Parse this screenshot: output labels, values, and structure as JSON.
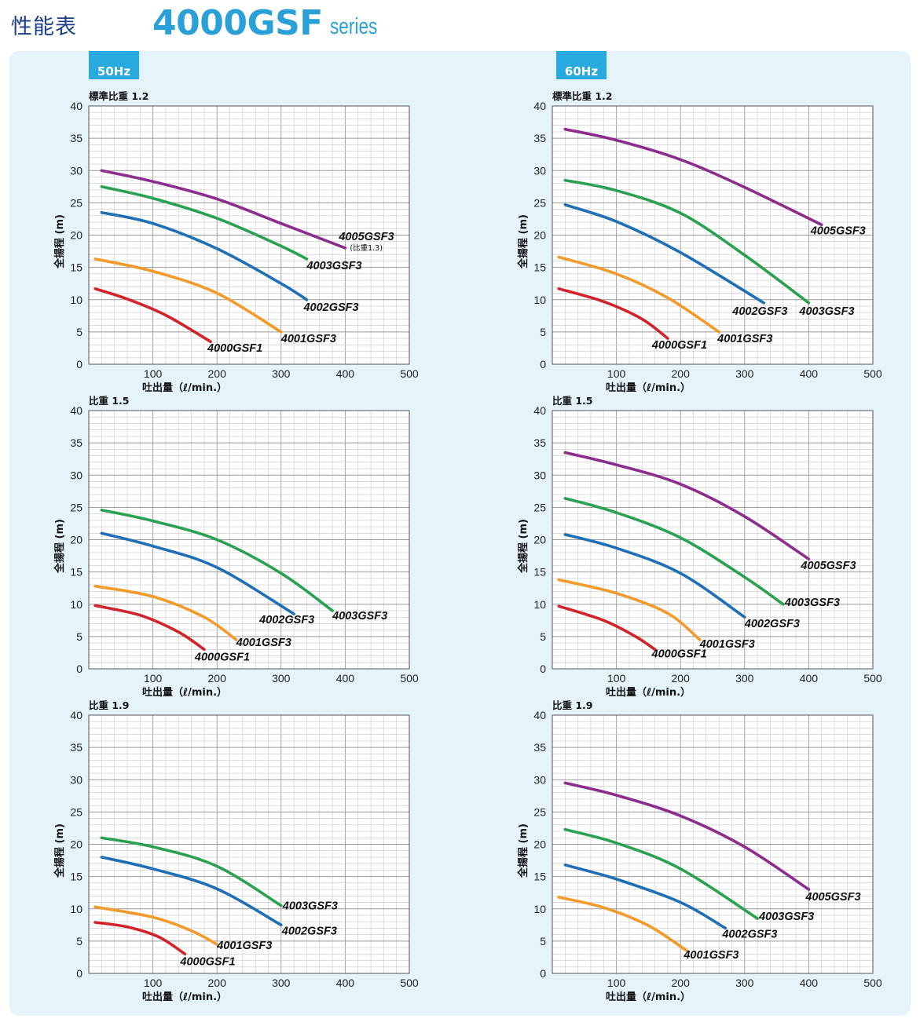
{
  "header": {
    "title": "性能表",
    "model": "4000GSF",
    "series": "series"
  },
  "columns": [
    {
      "freq": "50Hz"
    },
    {
      "freq": "60Hz"
    }
  ],
  "colors": {
    "4000GSF1": "#d2232a",
    "4001GSF3": "#f39a2b",
    "4002GSF3": "#1f6fb7",
    "4003GSF3": "#2aa150",
    "4005GSF3": "#8c2d8e"
  },
  "chart_data": [
    {
      "type": "line",
      "freq": "50Hz",
      "subtitle": "標準比重 1.2",
      "xlabel": "吐出量（ℓ/min.）",
      "ylabel": "全揚程 (m)",
      "xlim": [
        0,
        500
      ],
      "ylim": [
        0,
        40
      ],
      "xticks": [
        100,
        200,
        300,
        400,
        500
      ],
      "yticks": [
        0,
        5,
        10,
        15,
        20,
        25,
        30,
        35,
        40
      ],
      "grid": true,
      "series": [
        {
          "name": "4005GSF3",
          "note": "(比重1.3)",
          "color": "#8c2d8e",
          "x": [
            20,
            100,
            200,
            300,
            400
          ],
          "y": [
            30,
            28.3,
            25.6,
            21.8,
            18
          ]
        },
        {
          "name": "4003GSF3",
          "color": "#2aa150",
          "x": [
            20,
            100,
            200,
            300,
            340
          ],
          "y": [
            27.5,
            25.7,
            22.6,
            18.3,
            16.3
          ]
        },
        {
          "name": "4002GSF3",
          "color": "#1f6fb7",
          "x": [
            20,
            100,
            200,
            300,
            340
          ],
          "y": [
            23.5,
            21.8,
            17.9,
            12.5,
            10
          ]
        },
        {
          "name": "4001GSF3",
          "color": "#f39a2b",
          "x": [
            10,
            100,
            200,
            300
          ],
          "y": [
            16.3,
            14.4,
            11,
            5
          ]
        },
        {
          "name": "4000GSF1",
          "color": "#d2232a",
          "x": [
            10,
            60,
            120,
            190
          ],
          "y": [
            11.7,
            10.1,
            7.6,
            3.5
          ]
        }
      ]
    },
    {
      "type": "line",
      "freq": "60Hz",
      "subtitle": "標準比重 1.2",
      "xlabel": "吐出量（ℓ/min.）",
      "ylabel": "全揚程 (m)",
      "xlim": [
        0,
        500
      ],
      "ylim": [
        0,
        40
      ],
      "xticks": [
        100,
        200,
        300,
        400,
        500
      ],
      "yticks": [
        0,
        5,
        10,
        15,
        20,
        25,
        30,
        35,
        40
      ],
      "grid": true,
      "series": [
        {
          "name": "4005GSF3",
          "color": "#8c2d8e",
          "x": [
            20,
            100,
            200,
            300,
            420
          ],
          "y": [
            36.4,
            34.7,
            31.7,
            27.4,
            21.6
          ]
        },
        {
          "name": "4003GSF3",
          "color": "#2aa150",
          "x": [
            20,
            100,
            200,
            300,
            400
          ],
          "y": [
            28.5,
            26.9,
            23.4,
            16.9,
            9.5
          ]
        },
        {
          "name": "4002GSF3",
          "color": "#1f6fb7",
          "x": [
            20,
            100,
            200,
            330
          ],
          "y": [
            24.7,
            22.1,
            17.3,
            9.5
          ]
        },
        {
          "name": "4001GSF3",
          "color": "#f39a2b",
          "x": [
            10,
            100,
            180,
            260
          ],
          "y": [
            16.6,
            14,
            10.3,
            5
          ]
        },
        {
          "name": "4000GSF1",
          "color": "#d2232a",
          "x": [
            10,
            80,
            140,
            180
          ],
          "y": [
            11.7,
            9.7,
            7,
            4
          ]
        }
      ]
    },
    {
      "type": "line",
      "freq": "50Hz",
      "subtitle": "比重 1.5",
      "xlabel": "吐出量（ℓ/min.）",
      "ylabel": "全揚程 (m)",
      "xlim": [
        0,
        500
      ],
      "ylim": [
        0,
        40
      ],
      "xticks": [
        100,
        200,
        300,
        400,
        500
      ],
      "yticks": [
        0,
        5,
        10,
        15,
        20,
        25,
        30,
        35,
        40
      ],
      "grid": true,
      "series": [
        {
          "name": "4003GSF3",
          "color": "#2aa150",
          "x": [
            20,
            100,
            200,
            300,
            380
          ],
          "y": [
            24.6,
            22.9,
            20,
            14.8,
            9
          ]
        },
        {
          "name": "4002GSF3",
          "color": "#1f6fb7",
          "x": [
            20,
            100,
            200,
            320
          ],
          "y": [
            21,
            19,
            15.7,
            8.5
          ]
        },
        {
          "name": "4001GSF3",
          "color": "#f39a2b",
          "x": [
            10,
            100,
            180,
            230
          ],
          "y": [
            12.8,
            11.2,
            8,
            4.5
          ]
        },
        {
          "name": "4000GSF1",
          "color": "#d2232a",
          "x": [
            10,
            80,
            140,
            180
          ],
          "y": [
            9.8,
            8.3,
            5.7,
            3
          ]
        }
      ]
    },
    {
      "type": "line",
      "freq": "60Hz",
      "subtitle": "比重 1.5",
      "xlabel": "吐出量（ℓ/min.）",
      "ylabel": "全揚程 (m)",
      "xlim": [
        0,
        500
      ],
      "ylim": [
        0,
        40
      ],
      "xticks": [
        100,
        200,
        300,
        400,
        500
      ],
      "yticks": [
        0,
        5,
        10,
        15,
        20,
        25,
        30,
        35,
        40
      ],
      "grid": true,
      "series": [
        {
          "name": "4005GSF3",
          "color": "#8c2d8e",
          "x": [
            20,
            100,
            200,
            300,
            400
          ],
          "y": [
            33.5,
            31.6,
            28.6,
            23.6,
            17
          ]
        },
        {
          "name": "4003GSF3",
          "color": "#2aa150",
          "x": [
            20,
            100,
            200,
            300,
            360
          ],
          "y": [
            26.4,
            24.2,
            20.3,
            14.2,
            10
          ]
        },
        {
          "name": "4002GSF3",
          "color": "#1f6fb7",
          "x": [
            20,
            100,
            200,
            300
          ],
          "y": [
            20.8,
            18.7,
            14.8,
            8
          ]
        },
        {
          "name": "4001GSF3",
          "color": "#f39a2b",
          "x": [
            10,
            100,
            180,
            230
          ],
          "y": [
            13.8,
            11.7,
            8.6,
            4.5
          ]
        },
        {
          "name": "4000GSF1",
          "color": "#d2232a",
          "x": [
            10,
            80,
            130,
            160
          ],
          "y": [
            9.7,
            7.5,
            5,
            3
          ]
        }
      ]
    },
    {
      "type": "line",
      "freq": "50Hz",
      "subtitle": "比重 1.9",
      "xlabel": "吐出量（ℓ/min.）",
      "ylabel": "全揚程 (m)",
      "xlim": [
        0,
        500
      ],
      "ylim": [
        0,
        40
      ],
      "xticks": [
        100,
        200,
        300,
        400,
        500
      ],
      "yticks": [
        0,
        5,
        10,
        15,
        20,
        25,
        30,
        35,
        40
      ],
      "grid": true,
      "series": [
        {
          "name": "4003GSF3",
          "color": "#2aa150",
          "x": [
            20,
            100,
            200,
            300
          ],
          "y": [
            21,
            19.6,
            16.6,
            10.5
          ]
        },
        {
          "name": "4002GSF3",
          "color": "#1f6fb7",
          "x": [
            20,
            100,
            200,
            300
          ],
          "y": [
            18,
            16.2,
            13.1,
            7.5
          ]
        },
        {
          "name": "4001GSF3",
          "color": "#f39a2b",
          "x": [
            10,
            100,
            160,
            200
          ],
          "y": [
            10.3,
            8.7,
            6.6,
            4.5
          ]
        },
        {
          "name": "4000GSF1",
          "color": "#d2232a",
          "x": [
            10,
            60,
            110,
            150
          ],
          "y": [
            7.9,
            7.2,
            5.6,
            3
          ]
        }
      ]
    },
    {
      "type": "line",
      "freq": "60Hz",
      "subtitle": "比重 1.9",
      "xlabel": "吐出量（ℓ/min.）",
      "ylabel": "全揚程 (m)",
      "xlim": [
        0,
        500
      ],
      "ylim": [
        0,
        40
      ],
      "xticks": [
        100,
        200,
        300,
        400,
        500
      ],
      "yticks": [
        0,
        5,
        10,
        15,
        20,
        25,
        30,
        35,
        40
      ],
      "grid": true,
      "series": [
        {
          "name": "4005GSF3",
          "color": "#8c2d8e",
          "x": [
            20,
            100,
            200,
            300,
            400
          ],
          "y": [
            29.5,
            27.6,
            24.4,
            19.6,
            13
          ]
        },
        {
          "name": "4003GSF3",
          "color": "#2aa150",
          "x": [
            20,
            100,
            200,
            320
          ],
          "y": [
            22.3,
            20.2,
            16.2,
            8.5
          ]
        },
        {
          "name": "4002GSF3",
          "color": "#1f6fb7",
          "x": [
            20,
            100,
            200,
            270
          ],
          "y": [
            16.8,
            14.6,
            11,
            7
          ]
        },
        {
          "name": "4001GSF3",
          "color": "#f39a2b",
          "x": [
            10,
            80,
            150,
            210
          ],
          "y": [
            11.8,
            10.2,
            7.4,
            3.5
          ]
        }
      ]
    }
  ]
}
